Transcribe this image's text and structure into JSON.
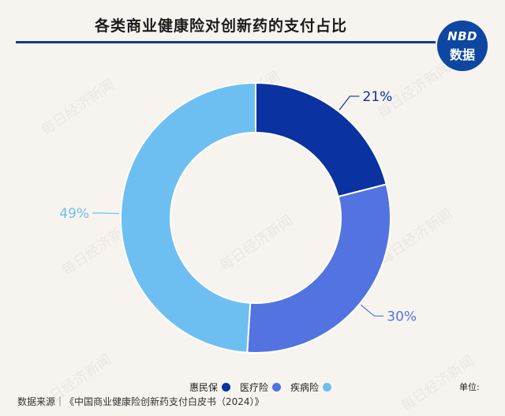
{
  "title": "各类商业健康险对创新药的支付占比",
  "logo": {
    "line1": "NBD",
    "line2": "数据"
  },
  "watermark_text": "每日经济新闻",
  "legend_items": [
    {
      "label": "惠民保",
      "color": "#0a32a0"
    },
    {
      "label": "医疗险",
      "color": "#5273e0"
    },
    {
      "label": "疾病险",
      "color": "#6dbff2"
    }
  ],
  "unit_label": "单位:",
  "source": "数据来源｜《中国商业健康险创新药支付白皮书（2024）》",
  "chart_data": {
    "type": "donut",
    "title": "各类商业健康险对创新药的支付占比",
    "series": [
      {
        "name": "惠民保",
        "value": 21,
        "label": "21%",
        "color": "#0a32a0"
      },
      {
        "name": "医疗险",
        "value": 30,
        "label": "30%",
        "color": "#5273e0"
      },
      {
        "name": "疾病险",
        "value": 49,
        "label": "49%",
        "color": "#6dbff2"
      }
    ],
    "legend_position": "bottom"
  }
}
